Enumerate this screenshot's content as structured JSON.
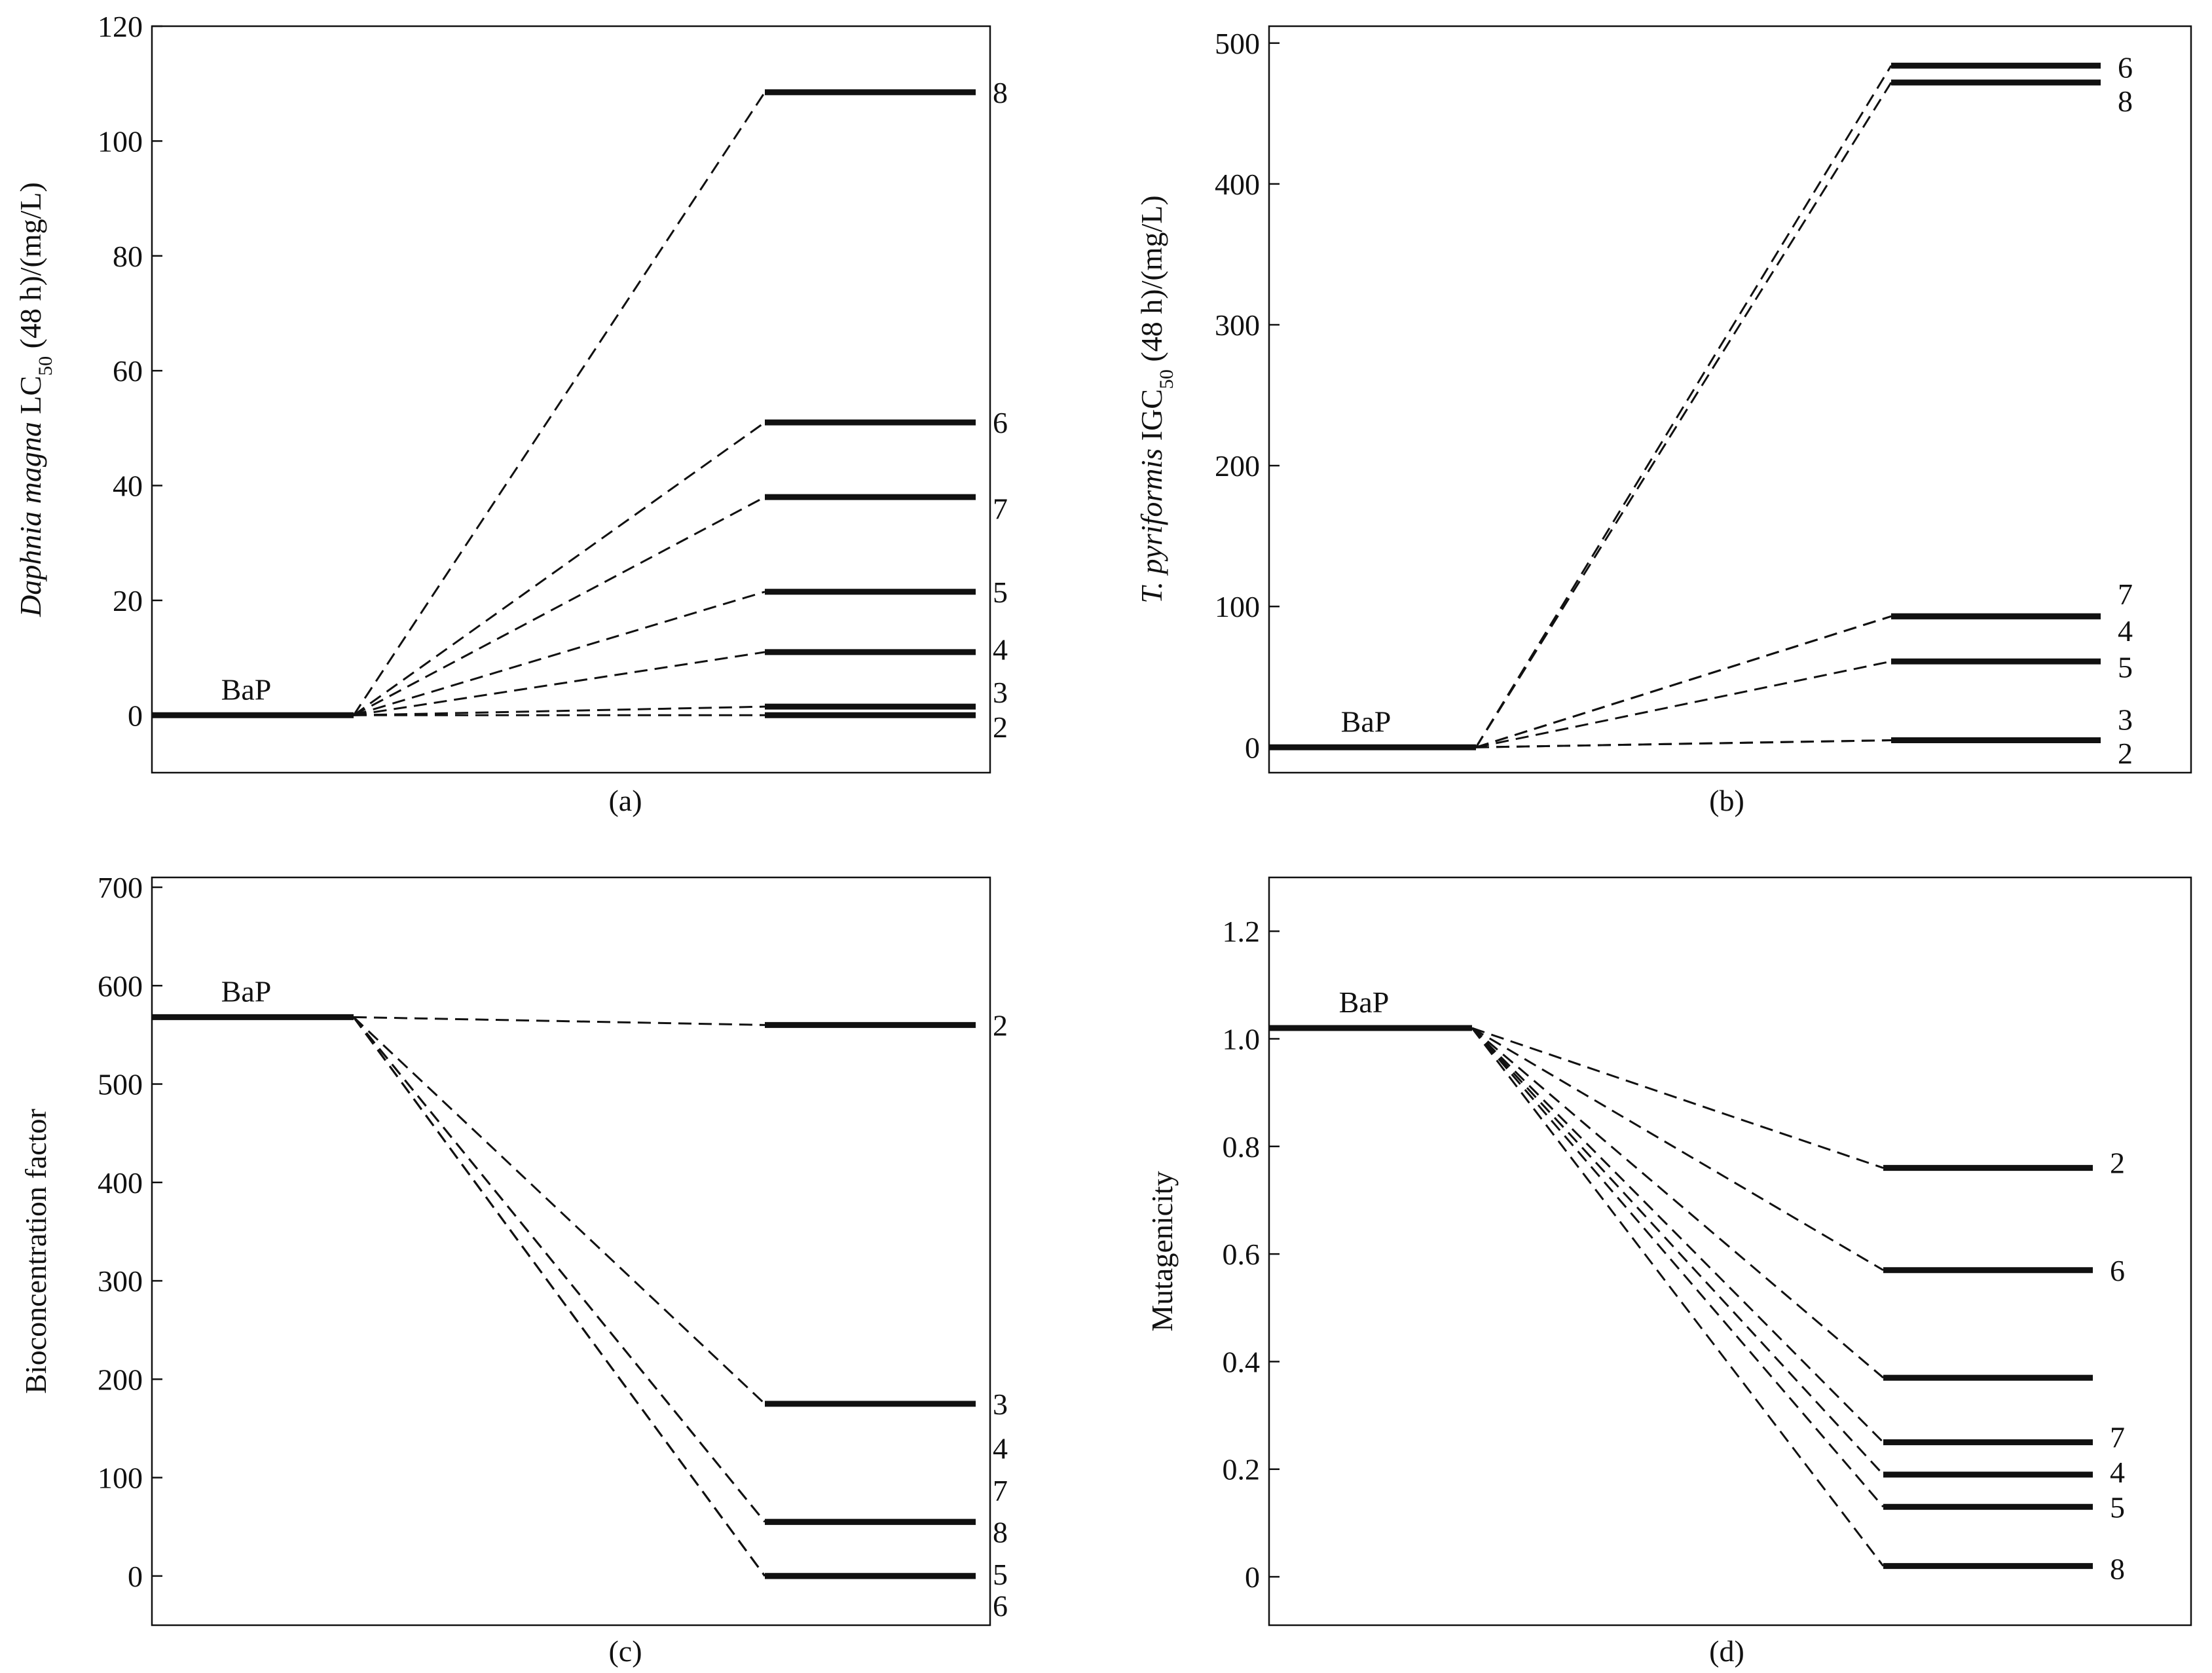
{
  "chart_data": [
    {
      "type": "line",
      "panel_label": "(a)",
      "ylabel_parts": [
        "Daphnia magna",
        " LC",
        "50",
        " (48 h)/(mg/L)"
      ],
      "ylim": [
        -10,
        120
      ],
      "yticks": [
        0,
        20,
        40,
        60,
        80,
        100,
        120
      ],
      "reference": {
        "name": "BaP",
        "value": 0
      },
      "series": [
        {
          "name": "8",
          "value": 108.5
        },
        {
          "name": "6",
          "value": 51
        },
        {
          "name": "7",
          "value": 38
        },
        {
          "name": "5",
          "value": 21.5
        },
        {
          "name": "4",
          "value": 11
        },
        {
          "name": "3",
          "value": 1.5
        },
        {
          "name": "2",
          "value": 0
        }
      ],
      "labels": [
        {
          "text": "8",
          "at": 108.5
        },
        {
          "text": "6",
          "at": 51
        },
        {
          "text": "7",
          "at": 36
        },
        {
          "text": "5",
          "at": 21.5
        },
        {
          "text": "4",
          "at": 11.5
        },
        {
          "text": "3",
          "at": 4
        },
        {
          "text": "2",
          "at": -2
        }
      ]
    },
    {
      "type": "line",
      "panel_label": "(b)",
      "ylabel_parts": [
        "T. pyriformis",
        " IGC",
        "50",
        " (48 h)/(mg/L)"
      ],
      "ylim": [
        -18,
        512
      ],
      "yticks": [
        0,
        100,
        200,
        300,
        400,
        500
      ],
      "reference": {
        "name": "BaP",
        "value": 0
      },
      "series": [
        {
          "name": "6",
          "value": 484
        },
        {
          "name": "8",
          "value": 472
        },
        {
          "name": "7",
          "value": 93
        },
        {
          "name": "4",
          "value": 93
        },
        {
          "name": "5",
          "value": 61
        },
        {
          "name": "3",
          "value": 5
        },
        {
          "name": "2",
          "value": 5
        }
      ],
      "labels": [
        {
          "text": "6",
          "at": 483
        },
        {
          "text": "8",
          "at": 459
        },
        {
          "text": "7",
          "at": 109
        },
        {
          "text": "4",
          "at": 83
        },
        {
          "text": "5",
          "at": 57
        },
        {
          "text": "3",
          "at": 20
        },
        {
          "text": "2",
          "at": -4
        }
      ]
    },
    {
      "type": "line",
      "panel_label": "(c)",
      "ylabel_parts": [
        "Bioconcentration factor"
      ],
      "ylim": [
        -50,
        710
      ],
      "yticks": [
        0,
        100,
        200,
        300,
        400,
        500,
        600,
        700
      ],
      "reference": {
        "name": "BaP",
        "value": 568
      },
      "series": [
        {
          "name": "2",
          "value": 560
        },
        {
          "name": "3",
          "value": 175
        },
        {
          "name": "4",
          "value": 55
        },
        {
          "name": "7",
          "value": 55
        },
        {
          "name": "8",
          "value": 0
        },
        {
          "name": "5",
          "value": 0
        },
        {
          "name": "6",
          "value": 0
        }
      ],
      "labels": [
        {
          "text": "2",
          "at": 560
        },
        {
          "text": "3",
          "at": 175
        },
        {
          "text": "4",
          "at": 130
        },
        {
          "text": "7",
          "at": 87
        },
        {
          "text": "8",
          "at": 45
        },
        {
          "text": "5",
          "at": 2
        },
        {
          "text": "6",
          "at": -30
        }
      ]
    },
    {
      "type": "line",
      "panel_label": "(d)",
      "ylabel_parts": [
        "Mutagenicity"
      ],
      "ylim": [
        -0.09,
        1.3
      ],
      "yticks": [
        "0",
        "0.2",
        "0.4",
        "0.6",
        "0.8",
        "1.0",
        "1.2"
      ],
      "reference": {
        "name": "BaP",
        "value": 1.02
      },
      "series": [
        {
          "name": "2",
          "value": 0.76
        },
        {
          "name": "6",
          "value": 0.57
        },
        {
          "name": "",
          "value": 0.37
        },
        {
          "name": "7",
          "value": 0.25
        },
        {
          "name": "4",
          "value": 0.19
        },
        {
          "name": "5",
          "value": 0.13
        },
        {
          "name": "8",
          "value": 0.02
        }
      ],
      "labels": [
        {
          "text": "2",
          "at": 0.77
        },
        {
          "text": "6",
          "at": 0.57
        },
        {
          "text": "7",
          "at": 0.26
        },
        {
          "text": "4",
          "at": 0.195
        },
        {
          "text": "5",
          "at": 0.13
        },
        {
          "text": "8",
          "at": 0.015
        }
      ]
    }
  ]
}
